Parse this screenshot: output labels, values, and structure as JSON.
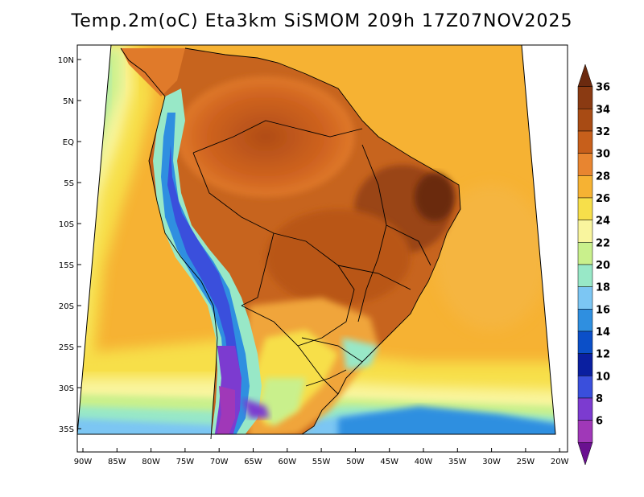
{
  "title": "Temp.2m(oC) Eta3km SiSMOM 209h 17Z07NOV2025",
  "map": {
    "lat_labels": [
      "10N",
      "5N",
      "EQ",
      "5S",
      "10S",
      "15S",
      "20S",
      "25S",
      "30S",
      "35S"
    ],
    "lon_labels": [
      "90W",
      "85W",
      "80W",
      "75W",
      "70W",
      "65W",
      "60W",
      "55W",
      "50W",
      "45W",
      "40W",
      "35W",
      "30W",
      "25W",
      "20W"
    ]
  },
  "colorbar": {
    "labels": [
      "36",
      "34",
      "32",
      "30",
      "28",
      "26",
      "24",
      "22",
      "20",
      "18",
      "16",
      "14",
      "12",
      "10",
      "8",
      "6"
    ],
    "colors": [
      "#6b2a0f",
      "#8a3a12",
      "#a84b14",
      "#c75f1b",
      "#e88530",
      "#f6b233",
      "#f7df4a",
      "#f9f59e",
      "#c9f08c",
      "#98e8c7",
      "#7cc6f3",
      "#2f8fe0",
      "#0b4fc8",
      "#0a1fa0",
      "#3a4fdc",
      "#7c3bd0",
      "#a038b8",
      "#6a1090"
    ]
  }
}
